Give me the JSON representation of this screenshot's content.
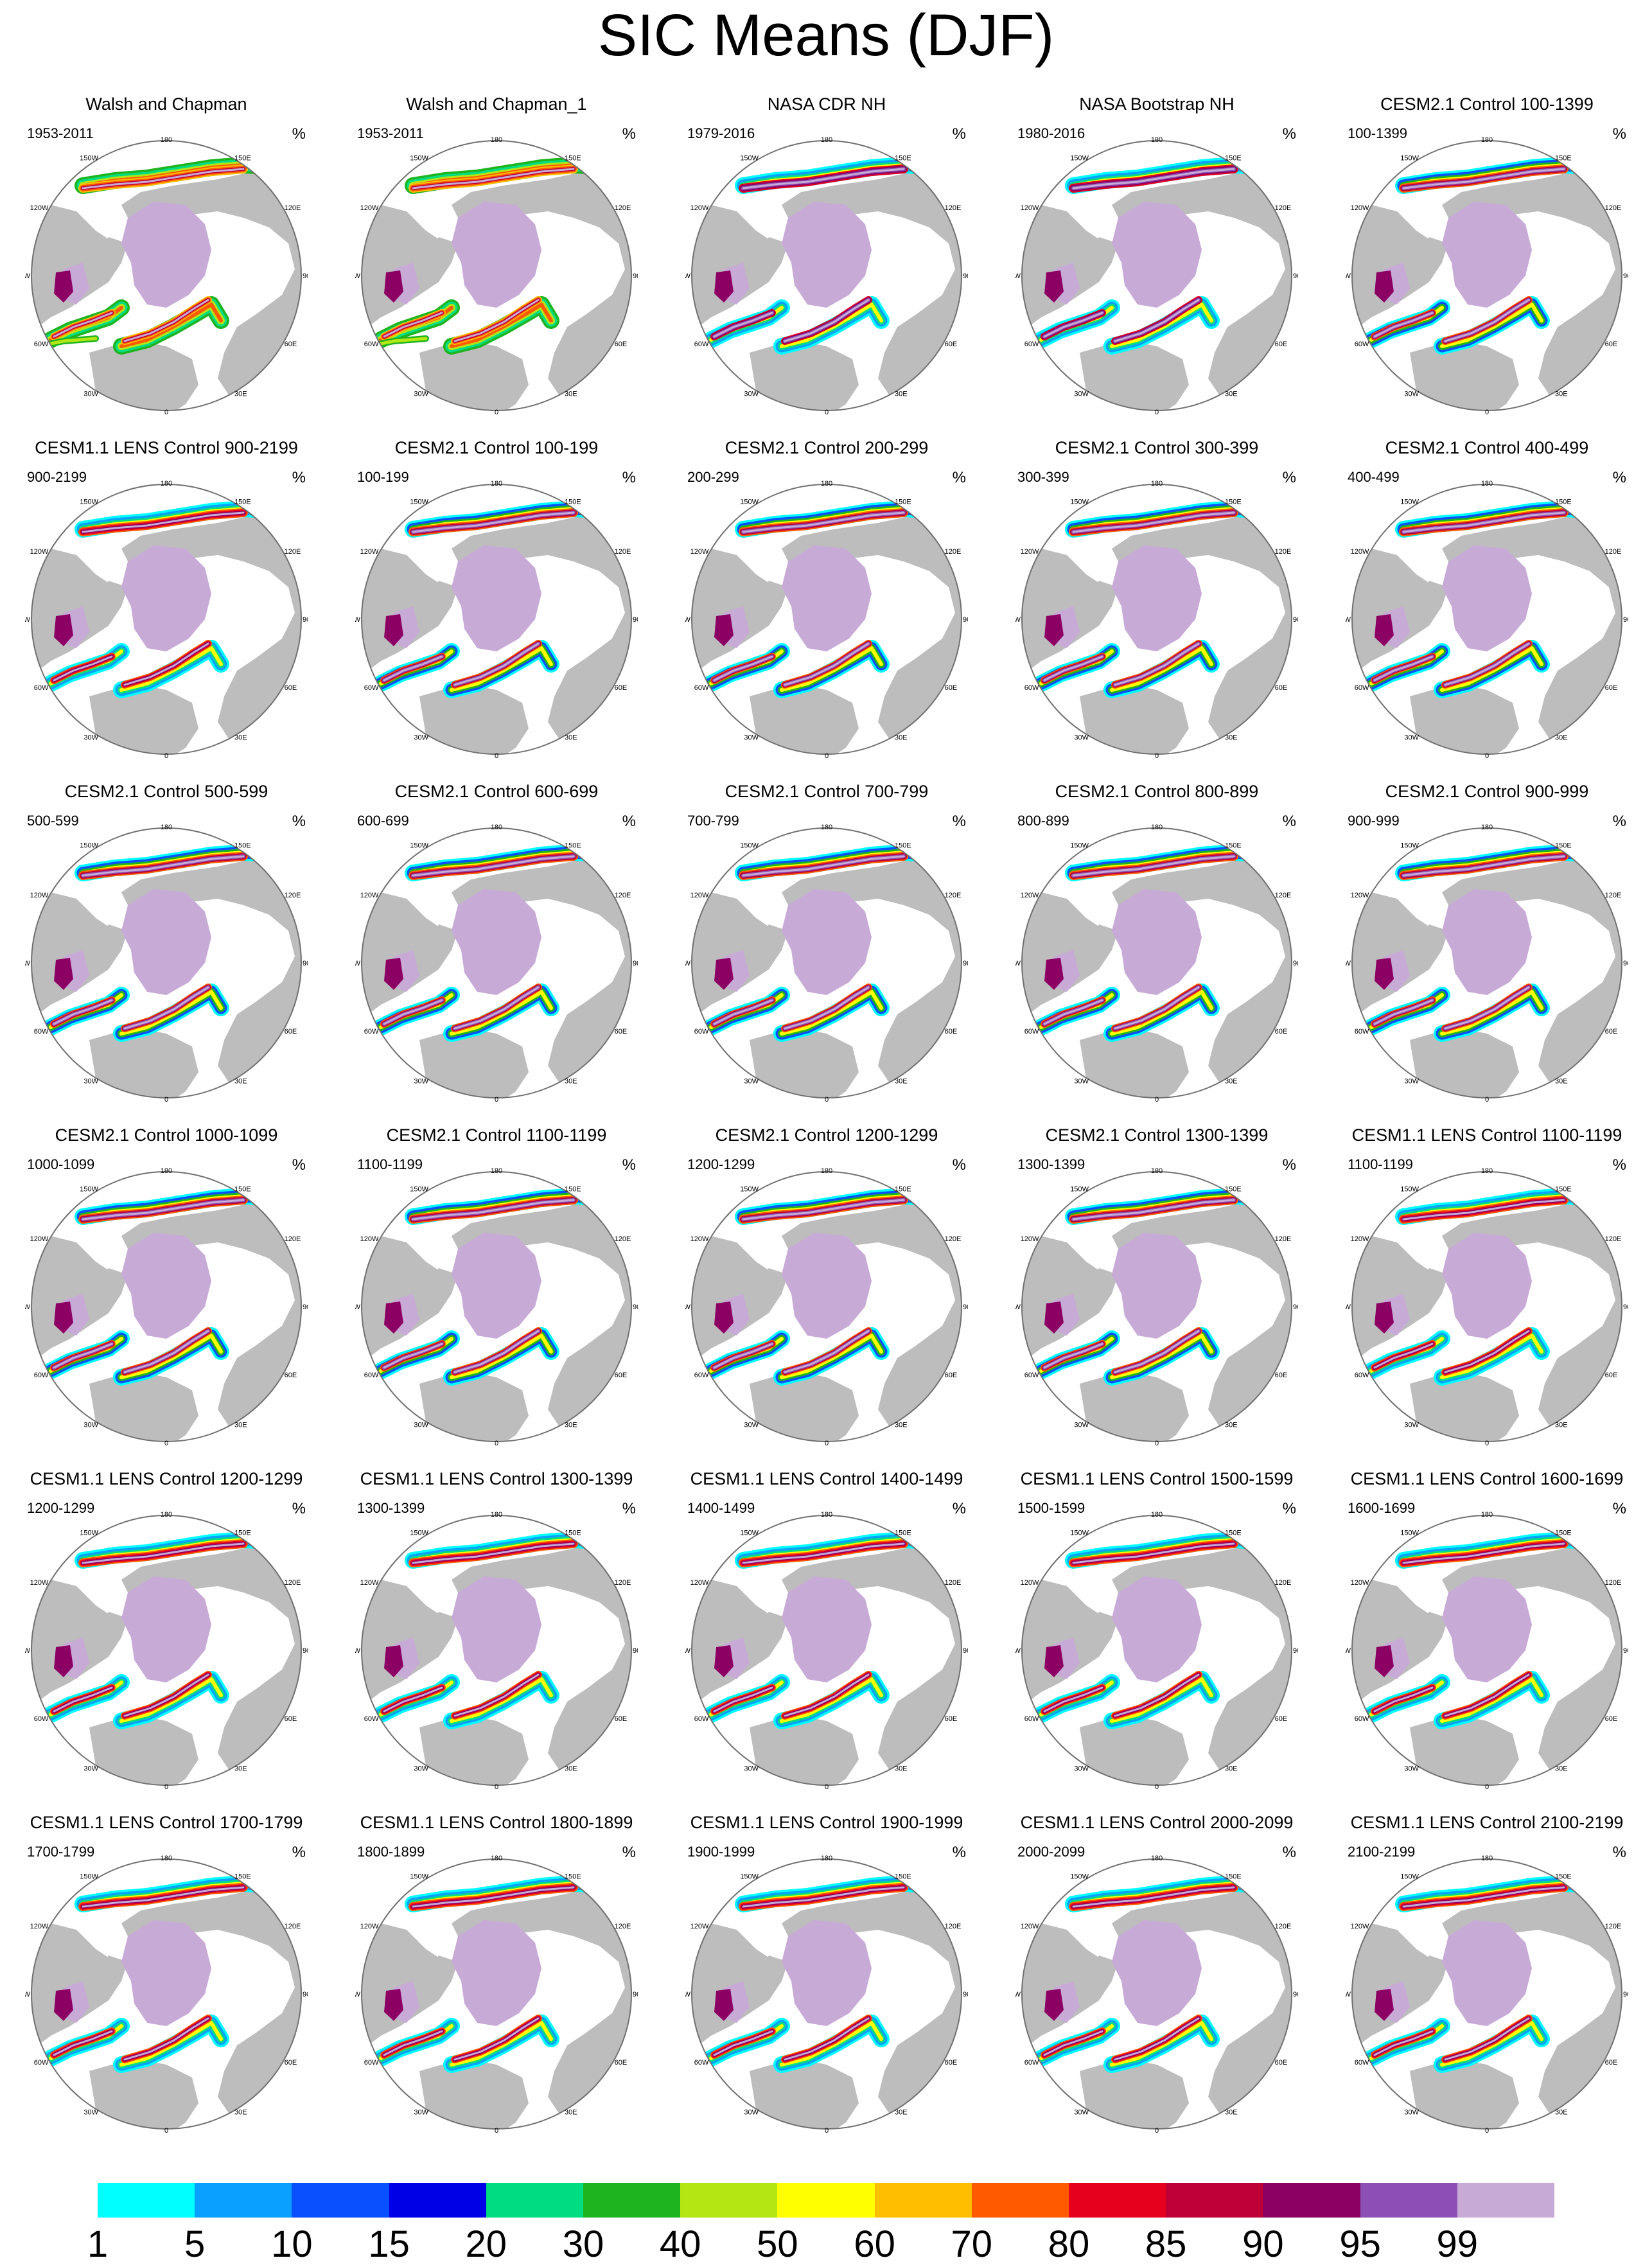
{
  "title": "SIC Means (DJF)",
  "unit": "%",
  "lon_labels": [
    "180",
    "150E",
    "120E",
    "90E",
    "60E",
    "30E",
    "0",
    "30W",
    "60W",
    "90W",
    "120W",
    "150W"
  ],
  "panels": [
    {
      "title": "Walsh and Chapman",
      "period": "1953-2011",
      "style": "obs"
    },
    {
      "title": "Walsh and Chapman_1",
      "period": "1953-2011",
      "style": "obs"
    },
    {
      "title": "NASA CDR NH",
      "period": "1979-2016",
      "style": "sat"
    },
    {
      "title": "NASA Bootstrap NH",
      "period": "1980-2016",
      "style": "sat"
    },
    {
      "title": "CESM2.1 Control 100-1399",
      "period": "100-1399",
      "style": "cesm2"
    },
    {
      "title": "CESM1.1 LENS Control 900-2199",
      "period": "900-2199",
      "style": "cesm1"
    },
    {
      "title": "CESM2.1 Control 100-199",
      "period": "100-199",
      "style": "cesm2"
    },
    {
      "title": "CESM2.1 Control 200-299",
      "period": "200-299",
      "style": "cesm2"
    },
    {
      "title": "CESM2.1 Control 300-399",
      "period": "300-399",
      "style": "cesm2"
    },
    {
      "title": "CESM2.1 Control 400-499",
      "period": "400-499",
      "style": "cesm2"
    },
    {
      "title": "CESM2.1 Control 500-599",
      "period": "500-599",
      "style": "cesm2"
    },
    {
      "title": "CESM2.1 Control 600-699",
      "period": "600-699",
      "style": "cesm2"
    },
    {
      "title": "CESM2.1 Control 700-799",
      "period": "700-799",
      "style": "cesm2"
    },
    {
      "title": "CESM2.1 Control 800-899",
      "period": "800-899",
      "style": "cesm2"
    },
    {
      "title": "CESM2.1 Control 900-999",
      "period": "900-999",
      "style": "cesm2"
    },
    {
      "title": "CESM2.1 Control 1000-1099",
      "period": "1000-1099",
      "style": "cesm2"
    },
    {
      "title": "CESM2.1 Control 1100-1199",
      "period": "1100-1199",
      "style": "cesm2"
    },
    {
      "title": "CESM2.1 Control 1200-1299",
      "period": "1200-1299",
      "style": "cesm2"
    },
    {
      "title": "CESM2.1 Control 1300-1399",
      "period": "1300-1399",
      "style": "cesm2"
    },
    {
      "title": "CESM1.1 LENS Control 1100-1199",
      "period": "1100-1199",
      "style": "cesm1"
    },
    {
      "title": "CESM1.1 LENS Control 1200-1299",
      "period": "1200-1299",
      "style": "cesm1"
    },
    {
      "title": "CESM1.1 LENS Control 1300-1399",
      "period": "1300-1399",
      "style": "cesm1"
    },
    {
      "title": "CESM1.1 LENS Control 1400-1499",
      "period": "1400-1499",
      "style": "cesm1"
    },
    {
      "title": "CESM1.1 LENS Control 1500-1599",
      "period": "1500-1599",
      "style": "cesm1"
    },
    {
      "title": "CESM1.1 LENS Control 1600-1699",
      "period": "1600-1699",
      "style": "cesm1"
    },
    {
      "title": "CESM1.1 LENS Control 1700-1799",
      "period": "1700-1799",
      "style": "cesm1"
    },
    {
      "title": "CESM1.1 LENS Control 1800-1899",
      "period": "1800-1899",
      "style": "cesm1"
    },
    {
      "title": "CESM1.1 LENS Control 1900-1999",
      "period": "1900-1999",
      "style": "cesm1"
    },
    {
      "title": "CESM1.1 LENS Control 2000-2099",
      "period": "2000-2099",
      "style": "cesm1"
    },
    {
      "title": "CESM1.1 LENS Control 2100-2199",
      "period": "2100-2199",
      "style": "cesm1"
    }
  ],
  "colorbar": {
    "labels": [
      "1",
      "5",
      "10",
      "15",
      "20",
      "30",
      "40",
      "50",
      "60",
      "70",
      "80",
      "85",
      "90",
      "95",
      "99"
    ],
    "colors": [
      "#00ffff",
      "#0aa0ff",
      "#0a50ff",
      "#0000e6",
      "#00dc82",
      "#1eb41e",
      "#b4e614",
      "#ffff00",
      "#ffbe00",
      "#ff5a00",
      "#e6001e",
      "#be0037",
      "#8c0064",
      "#8c50b4",
      "#c8aad7"
    ]
  },
  "colors": {
    "land": "#bdbdbd",
    "ocean": "#ffffff",
    "border": "#707070",
    "inner_ice": "#c8aad7"
  }
}
